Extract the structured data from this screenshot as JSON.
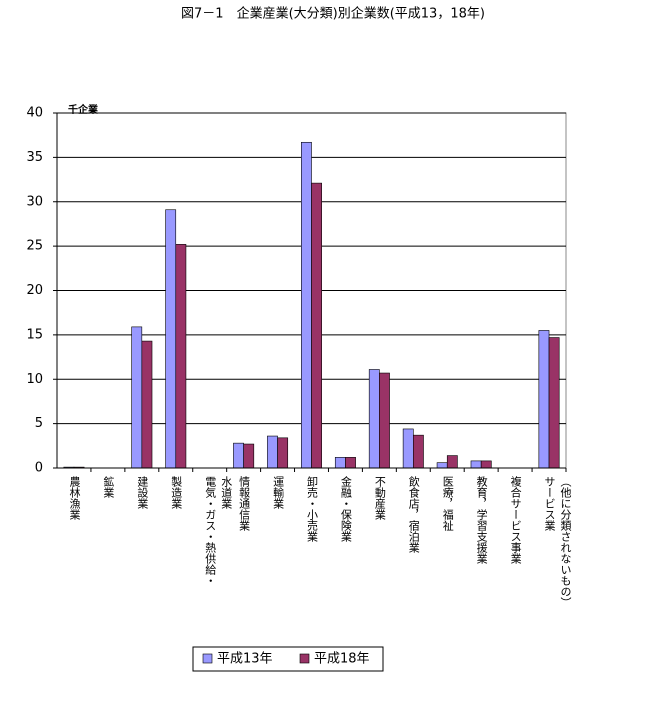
{
  "chart_data": {
    "type": "bar",
    "title": "図7－1　企業産業(大分類)別企業数(平成13，18年)",
    "y_unit": "千企業",
    "categories": [
      "農林漁業",
      "鉱業",
      "建設業",
      "製造業",
      "電気・ガス・熱供給・\n水道業",
      "情報通信業",
      "運輸業",
      "卸売・小売業",
      "金融・保険業",
      "不動産業",
      "飲食店，宿泊業",
      "医療，福祉",
      "教育，学習支援業",
      "複合サービス事業",
      "サービス業\n（他に分類されないもの）"
    ],
    "series": [
      {
        "name": "平成13年",
        "color": "#9999ff",
        "values": [
          0.1,
          0,
          15.9,
          29.1,
          0,
          2.8,
          3.6,
          36.7,
          1.2,
          11.1,
          4.4,
          0.6,
          0.8,
          0,
          15.5
        ]
      },
      {
        "name": "平成18年",
        "color": "#993366",
        "values": [
          0.1,
          0,
          14.3,
          25.2,
          0,
          2.7,
          3.4,
          32.1,
          1.2,
          10.7,
          3.7,
          1.4,
          0.8,
          0,
          14.7
        ]
      }
    ],
    "ylim": [
      0,
      40
    ],
    "yticks": [
      0,
      5,
      10,
      15,
      20,
      25,
      30,
      35,
      40
    ],
    "grid": true,
    "legend": "bottom"
  }
}
